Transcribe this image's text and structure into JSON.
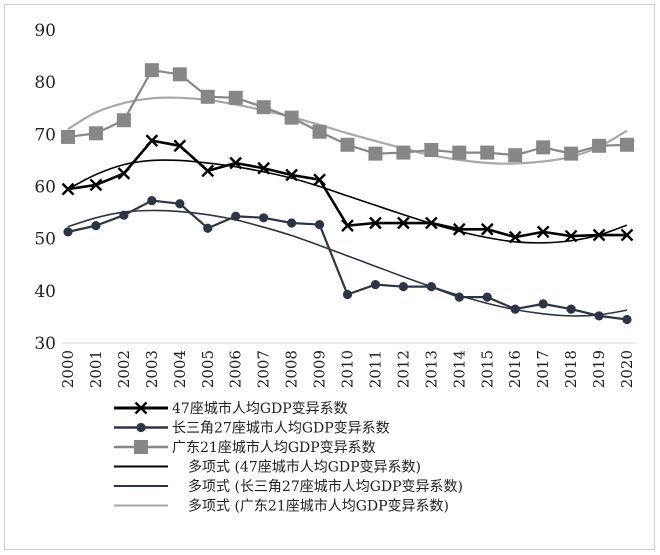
{
  "chart_data": {
    "type": "line",
    "title": "",
    "xlabel": "",
    "ylabel": "",
    "x": [
      "2000",
      "2001",
      "2002",
      "2003",
      "2004",
      "2005",
      "2006",
      "2007",
      "2008",
      "2009",
      "2010",
      "2011",
      "2012",
      "2013",
      "2014",
      "2015",
      "2016",
      "2017",
      "2018",
      "2019",
      "2020"
    ],
    "yticks": [
      30,
      40,
      50,
      60,
      70,
      80,
      90
    ],
    "ylim": [
      30,
      90
    ],
    "grid": "none",
    "legend_position": "bottom",
    "series": [
      {
        "name": "47座城市人均GDP变异系数",
        "color": "#000000",
        "marker": "x",
        "values": [
          59.5,
          60.3,
          62.5,
          68.8,
          67.8,
          63.0,
          64.5,
          63.5,
          62.2,
          61.3,
          52.5,
          53.0,
          53.0,
          53.0,
          51.8,
          51.8,
          50.3,
          51.3,
          50.5,
          50.7,
          50.7
        ]
      },
      {
        "name": "长三角27座城市人均GDP变异系数",
        "color": "#2c3548",
        "marker": "circle",
        "values": [
          51.3,
          52.5,
          54.5,
          57.3,
          56.7,
          52.0,
          54.3,
          54.0,
          53.0,
          52.7,
          39.3,
          41.2,
          40.8,
          40.8,
          38.8,
          38.8,
          36.5,
          37.5,
          36.5,
          35.2,
          34.5
        ]
      },
      {
        "name": "广东21座城市人均GDP变异系数",
        "color": "#878787",
        "marker": "square",
        "values": [
          69.5,
          70.2,
          72.7,
          82.3,
          81.5,
          77.2,
          77.0,
          75.2,
          73.2,
          70.5,
          68.0,
          66.3,
          66.5,
          67.0,
          66.5,
          66.5,
          66.0,
          67.5,
          66.3,
          67.8,
          68.0
        ]
      }
    ],
    "trendlines": [
      {
        "name": "多项式 (47座城市人均GDP变异系数)",
        "color": "#000000",
        "type": "polynomial",
        "values": [
          59.5,
          62.3,
          64.2,
          65.0,
          65.0,
          64.5,
          63.8,
          62.8,
          61.6,
          60.0,
          58.2,
          56.4,
          54.6,
          52.9,
          51.4,
          50.2,
          49.4,
          49.2,
          49.6,
          50.7,
          52.6
        ]
      },
      {
        "name": "多项式 (长三角27座城市人均GDP变异系数)",
        "color": "#2c3548",
        "type": "polynomial",
        "values": [
          52.3,
          54.0,
          55.1,
          55.4,
          55.2,
          54.6,
          53.6,
          52.2,
          50.6,
          48.7,
          46.7,
          44.7,
          42.7,
          40.8,
          39.1,
          37.6,
          36.4,
          35.6,
          35.2,
          35.4,
          36.3
        ]
      },
      {
        "name": "多项式 (广东21座城市人均GDP变异系数)",
        "color": "#a8a8a8",
        "type": "polynomial",
        "values": [
          71.0,
          74.2,
          76.0,
          76.9,
          77.0,
          76.6,
          75.7,
          74.6,
          73.3,
          71.8,
          70.2,
          68.7,
          67.3,
          66.0,
          65.1,
          64.5,
          64.4,
          64.8,
          65.7,
          67.6,
          70.7
        ]
      }
    ]
  }
}
